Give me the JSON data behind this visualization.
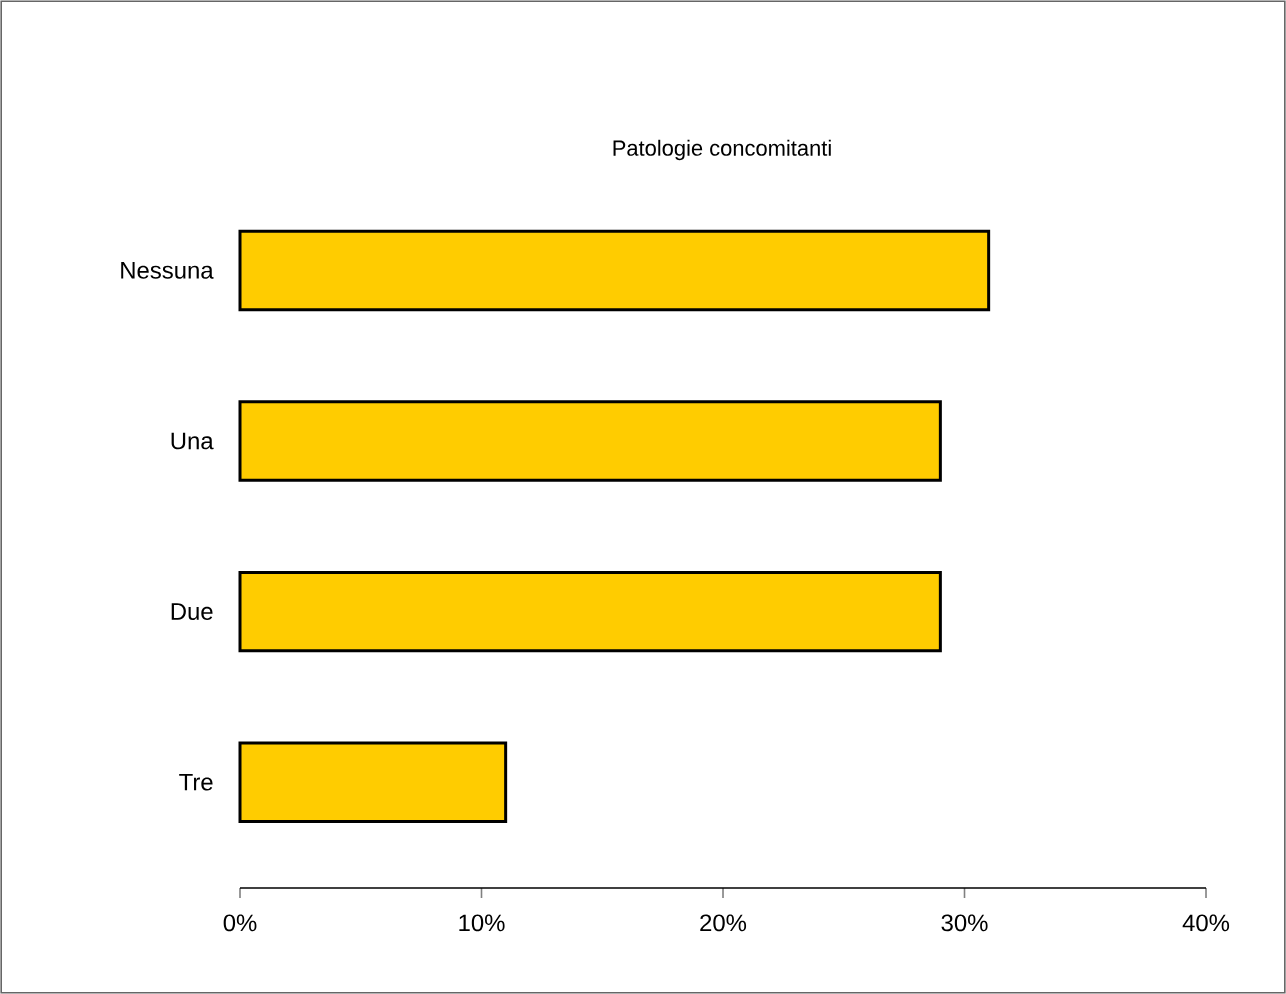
{
  "chart_data": {
    "type": "bar",
    "orientation": "horizontal",
    "title": "Patologie concomitanti",
    "categories": [
      "Nessuna",
      "Una",
      "Due",
      "Tre"
    ],
    "values": [
      31,
      29,
      29,
      11
    ],
    "color": "#ffcc00",
    "xlim": [
      0,
      40
    ],
    "xticks": [
      {
        "value": 0,
        "label": "0%"
      },
      {
        "value": 10,
        "label": "10%"
      },
      {
        "value": 20,
        "label": "20%"
      },
      {
        "value": 30,
        "label": "30%"
      },
      {
        "value": 40,
        "label": "40%"
      }
    ]
  }
}
